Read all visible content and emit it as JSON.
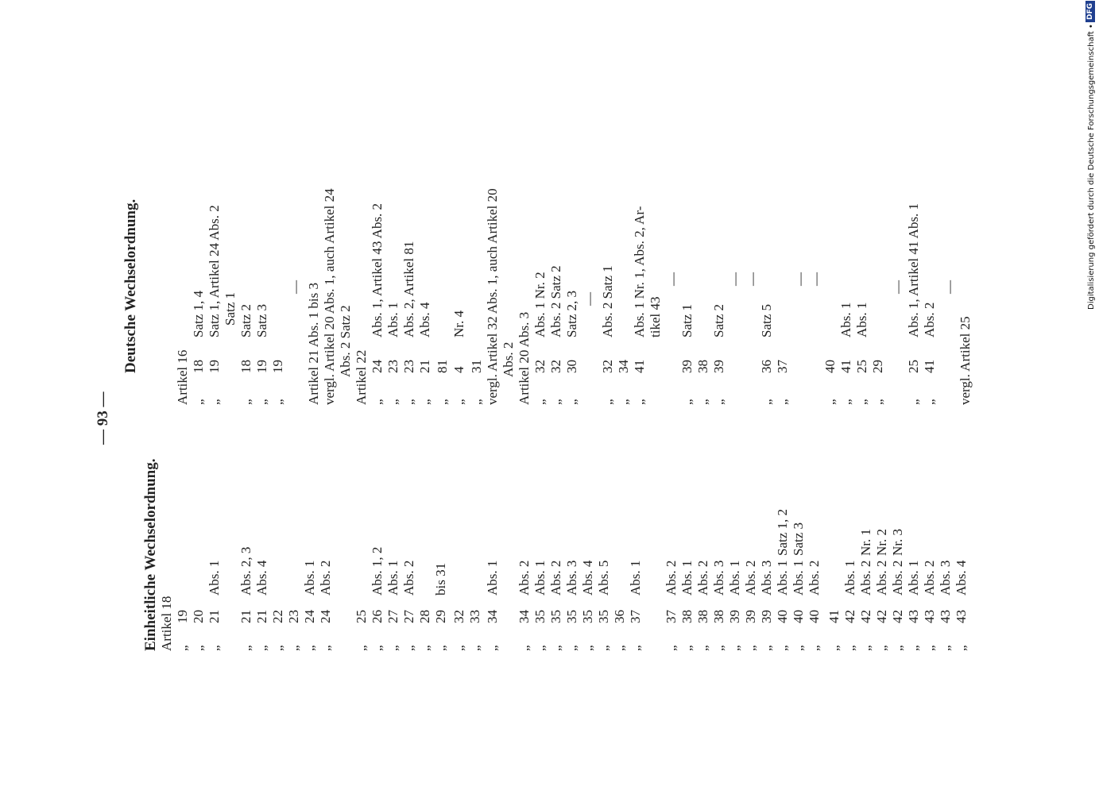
{
  "header": {
    "page_number": "— 93 —"
  },
  "columns": [
    {
      "title": "Einheitliche Wechselordnung.",
      "rows": [
        [
          "Artikel 18"
        ],
        [
          "„",
          "19"
        ],
        [
          "„",
          "20"
        ],
        [
          "„",
          "21",
          "Abs. 1"
        ],
        [
          "„",
          "21",
          "Abs. 2, 3"
        ],
        [
          "„",
          "21",
          "Abs. 4"
        ],
        [
          "„",
          "22"
        ],
        [
          "„",
          "23"
        ],
        [
          "„",
          "24",
          "Abs. 1"
        ],
        [
          "„",
          "24",
          "Abs. 2"
        ],
        [
          "„",
          "25"
        ],
        [
          "„",
          "26",
          "Abs. 1, 2"
        ],
        [
          "„",
          "27",
          "Abs. 1"
        ],
        [
          "„",
          "27",
          "Abs. 2"
        ],
        [
          "„",
          "28"
        ],
        [
          "„",
          "29",
          "bis 31"
        ],
        [
          "„",
          "32"
        ],
        [
          "„",
          "33"
        ],
        [
          "„",
          "34",
          "Abs. 1"
        ],
        [
          "„",
          "34",
          "Abs. 2"
        ],
        [
          "„",
          "35",
          "Abs. 1"
        ],
        [
          "„",
          "35",
          "Abs. 2"
        ],
        [
          "„",
          "35",
          "Abs. 3"
        ],
        [
          "„",
          "35",
          "Abs. 4"
        ],
        [
          "„",
          "35",
          "Abs. 5"
        ],
        [
          "„",
          "36"
        ],
        [
          "„",
          "37",
          "Abs. 1"
        ],
        [
          "„",
          "37",
          "Abs. 2"
        ],
        [
          "„",
          "38",
          "Abs. 1"
        ],
        [
          "„",
          "38",
          "Abs. 2"
        ],
        [
          "„",
          "38",
          "Abs. 3"
        ],
        [
          "„",
          "39",
          "Abs. 1"
        ],
        [
          "„",
          "39",
          "Abs. 2"
        ],
        [
          "„",
          "39",
          "Abs. 3"
        ],
        [
          "„",
          "40",
          "Abs. 1",
          "Satz 1, 2"
        ],
        [
          "„",
          "40",
          "Abs. 1",
          "Satz 3"
        ],
        [
          "„",
          "40",
          "Abs. 2"
        ],
        [
          "„",
          "41"
        ],
        [
          "„",
          "42",
          "Abs. 1"
        ],
        [
          "„",
          "42",
          "Abs. 2",
          "Nr. 1"
        ],
        [
          "„",
          "42",
          "Abs. 2",
          "Nr. 2"
        ],
        [
          "„",
          "42",
          "Abs. 2",
          "Nr. 3"
        ],
        [
          "„",
          "43",
          "Abs. 1"
        ],
        [
          "„",
          "43",
          "Abs. 2"
        ],
        [
          "„",
          "43",
          "Abs. 3"
        ],
        [
          "„",
          "43",
          "Abs. 4"
        ]
      ]
    },
    {
      "title": "Deutsche Wechselordnung.",
      "rows": [
        [
          "Artikel 16"
        ],
        [
          "„",
          "18",
          "Satz 1, 4"
        ],
        [
          "„",
          "19",
          "Satz 1, Artikel 24 Abs. 2"
        ],
        [
          "Satz 1"
        ],
        [
          "„",
          "18",
          "Satz 2"
        ],
        [
          "„",
          "19",
          "Satz 3"
        ],
        [
          "„",
          "19"
        ],
        [
          "—"
        ],
        [
          "Artikel 21 Abs. 1 bis 3"
        ],
        [
          "vergl. Artikel 20 Abs. 1, auch Artikel 24"
        ],
        [
          "Abs. 2 Satz 2"
        ],
        [
          "Artikel 22"
        ],
        [
          "„",
          "24",
          "Abs. 1, Artikel 43 Abs. 2"
        ],
        [
          "„",
          "23",
          "Abs. 1"
        ],
        [
          "„",
          "23",
          "Abs. 2, Artikel 81"
        ],
        [
          "„",
          "21",
          "Abs. 4"
        ],
        [
          "„",
          "81"
        ],
        [
          "„",
          "4",
          "Nr. 4"
        ],
        [
          "„",
          "31"
        ],
        [
          "vergl. Artikel 32 Abs. 1, auch Artikel 20"
        ],
        [
          "Abs. 2"
        ],
        [
          "Artikel 20 Abs. 3"
        ],
        [
          "„",
          "32",
          "Abs. 1 Nr. 2"
        ],
        [
          "„",
          "32",
          "Abs. 2 Satz 2"
        ],
        [
          "„",
          "30",
          "Satz 2, 3"
        ],
        [
          "—"
        ],
        [
          "„",
          "32",
          "Abs. 2 Satz 1"
        ],
        [
          "„",
          "34"
        ],
        [
          "„",
          "41",
          "Abs. 1 Nr. 1, Abs. 2, Ar-"
        ],
        [
          "tikel 43"
        ],
        [
          "—"
        ],
        [
          "„",
          "39",
          "Satz 1"
        ],
        [
          "„",
          "38"
        ],
        [
          "„",
          "39",
          "Satz 2"
        ],
        [
          "—"
        ],
        [
          "—"
        ],
        [
          "„",
          "36",
          "Satz 5"
        ],
        [
          "„",
          "37"
        ],
        [
          "—"
        ],
        [
          "—"
        ],
        [
          "„",
          "40"
        ],
        [
          "„",
          "41",
          "Abs. 1"
        ],
        [
          "„",
          "25",
          "Abs. 1"
        ],
        [
          "„",
          "29"
        ],
        [
          "—"
        ],
        [
          "„",
          "25",
          "Abs. 1, Artikel 41 Abs. 1"
        ],
        [
          "„",
          "41",
          "Abs. 2"
        ],
        [
          "—"
        ],
        [
          "vergl. Artikel 25"
        ]
      ]
    }
  ],
  "footer": {
    "credit": "Digitalisierung gefördert durch die Deutsche Forschungsgemeinschaft •",
    "logo": "DFG"
  }
}
